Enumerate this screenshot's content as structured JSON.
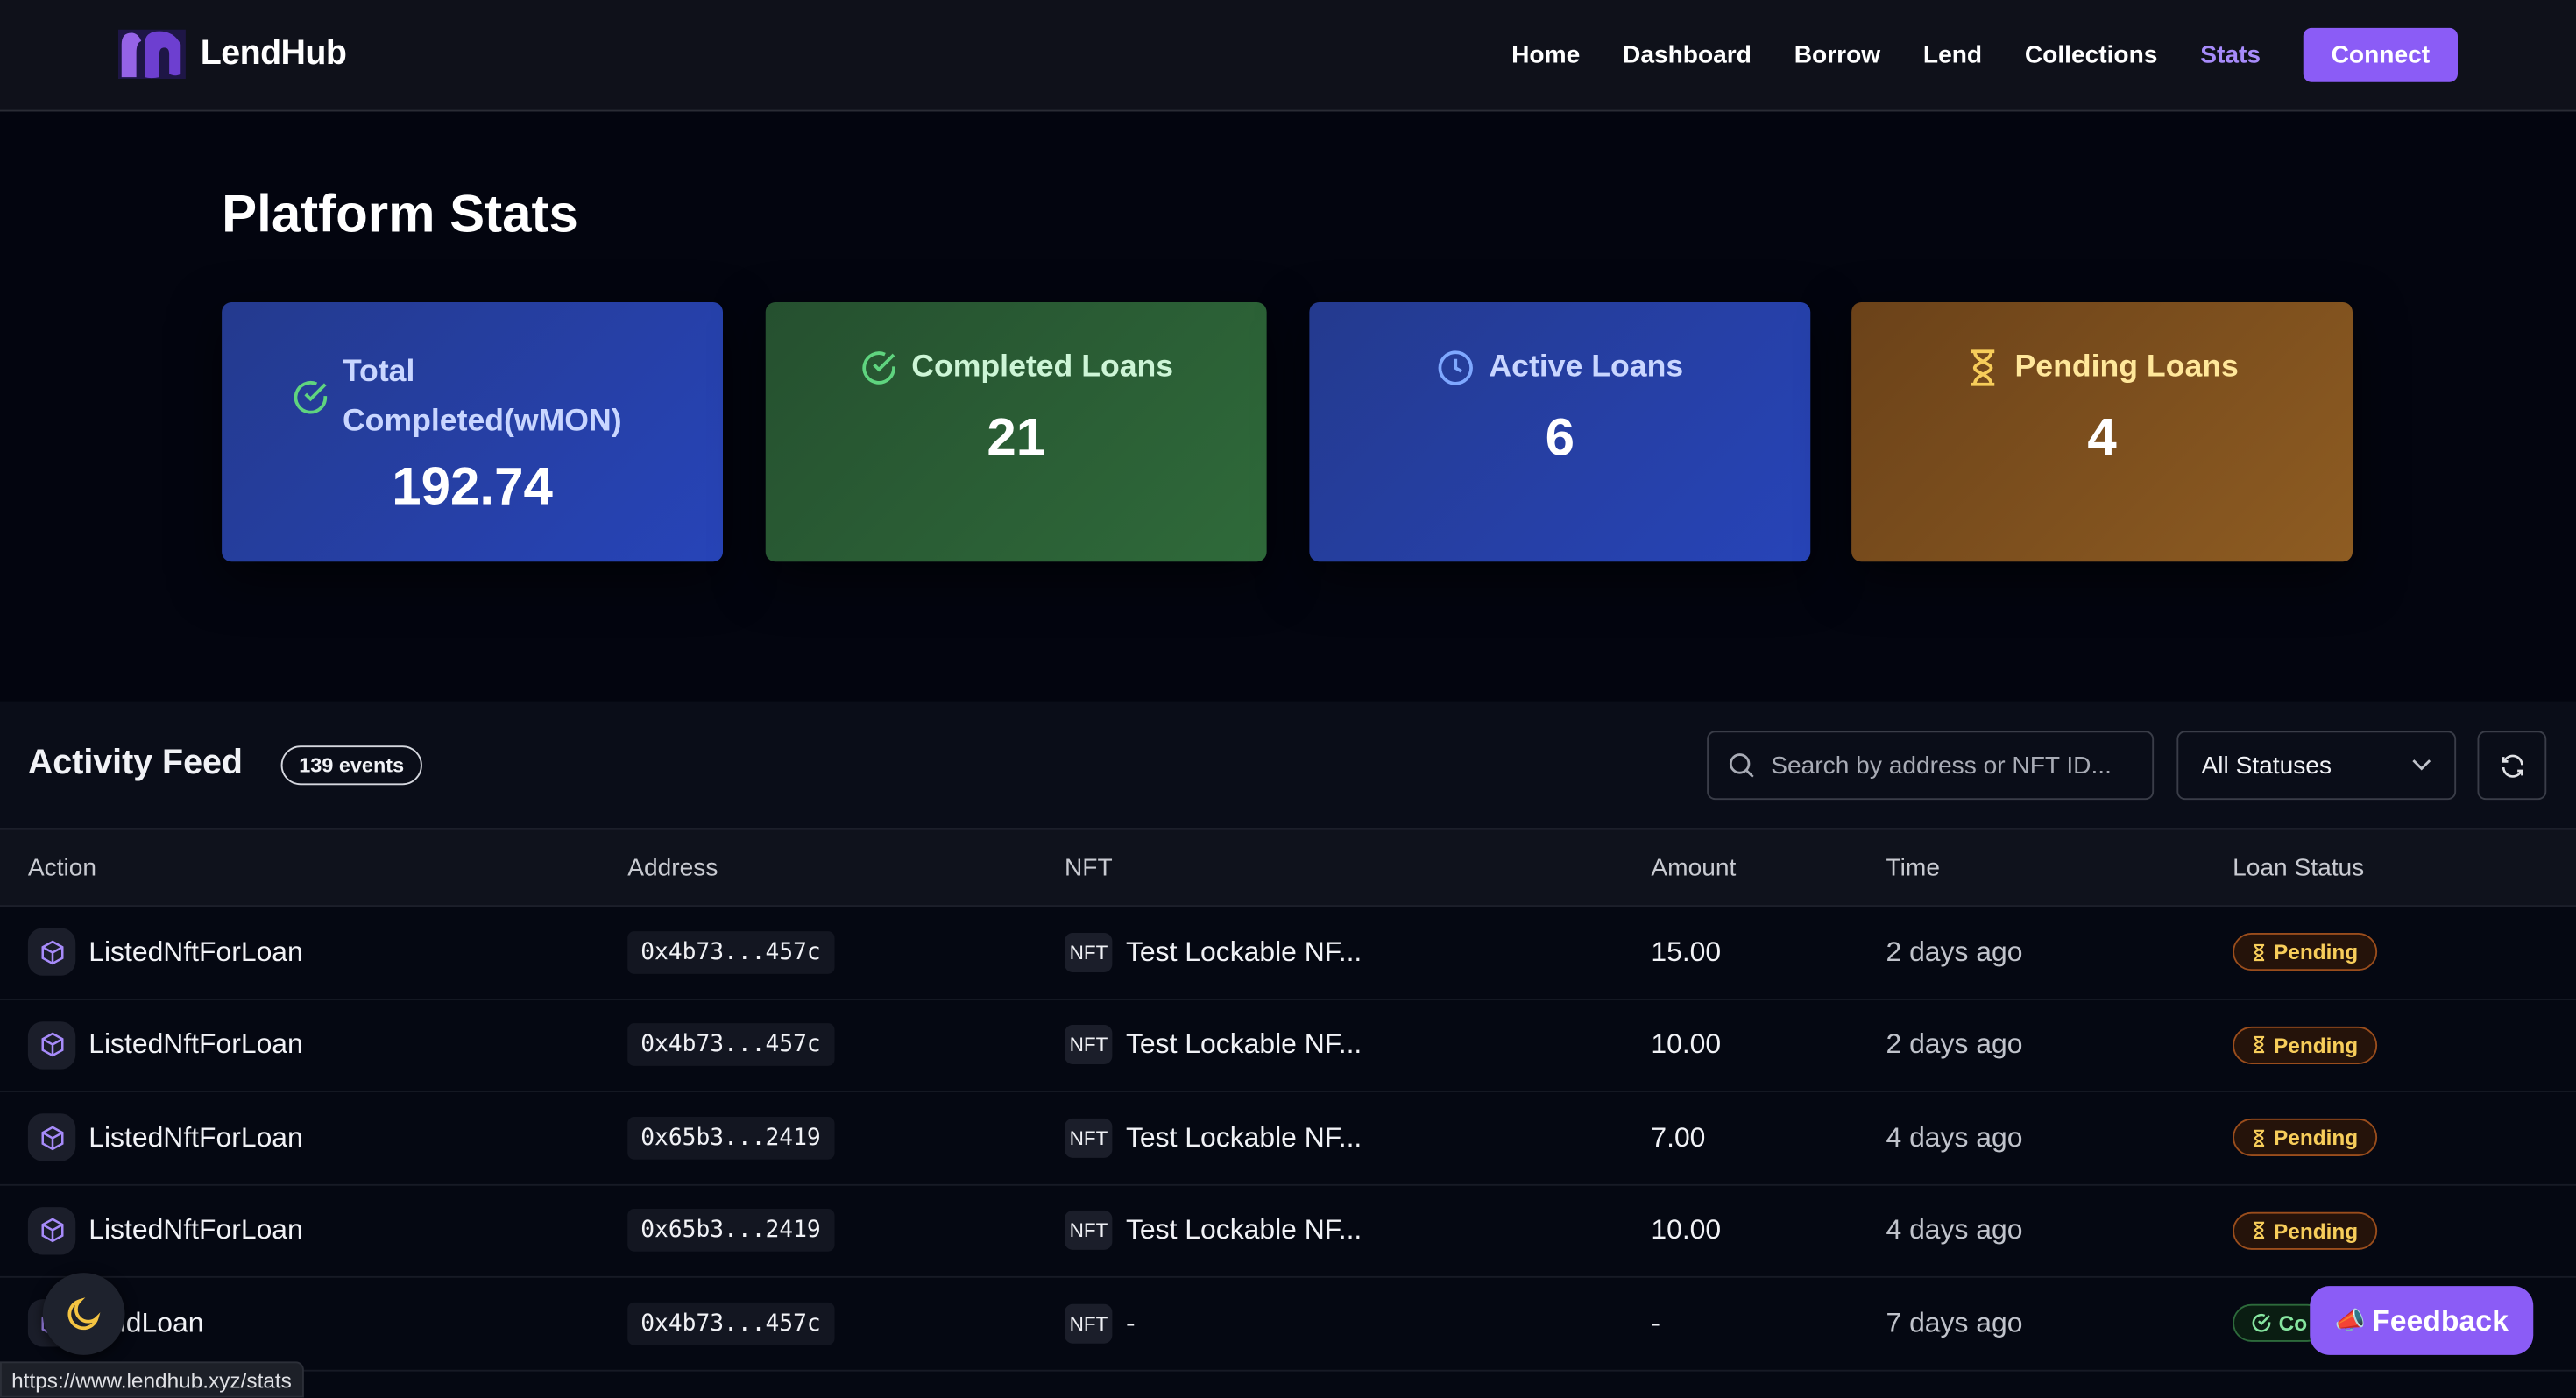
{
  "app": {
    "name": "LendHub"
  },
  "nav": {
    "links": [
      "Home",
      "Dashboard",
      "Borrow",
      "Lend",
      "Collections",
      "Stats"
    ],
    "active": "Stats",
    "connect_label": "Connect"
  },
  "page": {
    "title": "Platform Stats"
  },
  "stats": [
    {
      "label": "Total Completed(wMON)",
      "value": "192.74",
      "icon": "check-circle-icon"
    },
    {
      "label": "Completed Loans",
      "value": "21",
      "icon": "check-circle-icon"
    },
    {
      "label": "Active Loans",
      "value": "6",
      "icon": "clock-icon"
    },
    {
      "label": "Pending Loans",
      "value": "4",
      "icon": "hourglass-icon"
    }
  ],
  "feed": {
    "title": "Activity Feed",
    "count_badge": "139 events",
    "search_placeholder": "Search by address or NFT ID...",
    "status_filter": "All Statuses",
    "columns": [
      "Action",
      "Address",
      "NFT",
      "Amount",
      "Time",
      "Loan Status"
    ],
    "rows": [
      {
        "action": "ListedNftForLoan",
        "address": "0x4b73...457c",
        "nft_badge": "NFT",
        "nft": "Test Lockable NF...",
        "amount": "15.00",
        "time": "2 days ago",
        "status": "Pending"
      },
      {
        "action": "ListedNftForLoan",
        "address": "0x4b73...457c",
        "nft_badge": "NFT",
        "nft": "Test Lockable NF...",
        "amount": "10.00",
        "time": "2 days ago",
        "status": "Pending"
      },
      {
        "action": "ListedNftForLoan",
        "address": "0x65b3...2419",
        "nft_badge": "NFT",
        "nft": "Test Lockable NF...",
        "amount": "7.00",
        "time": "4 days ago",
        "status": "Pending"
      },
      {
        "action": "ListedNftForLoan",
        "address": "0x65b3...2419",
        "nft_badge": "NFT",
        "nft": "Test Lockable NF...",
        "amount": "10.00",
        "time": "4 days ago",
        "status": "Pending"
      },
      {
        "action": "paidLoan",
        "address": "0x4b73...457c",
        "nft_badge": "NFT",
        "nft": "-",
        "amount": "-",
        "time": "7 days ago",
        "status": "Co"
      }
    ]
  },
  "status_bar_url": "https://www.lendhub.xyz/stats",
  "feedback_label": "Feedback",
  "colors": {
    "accent": "#8b5cf6",
    "pending": "#f7cd5a",
    "completed": "#86e6a0"
  }
}
